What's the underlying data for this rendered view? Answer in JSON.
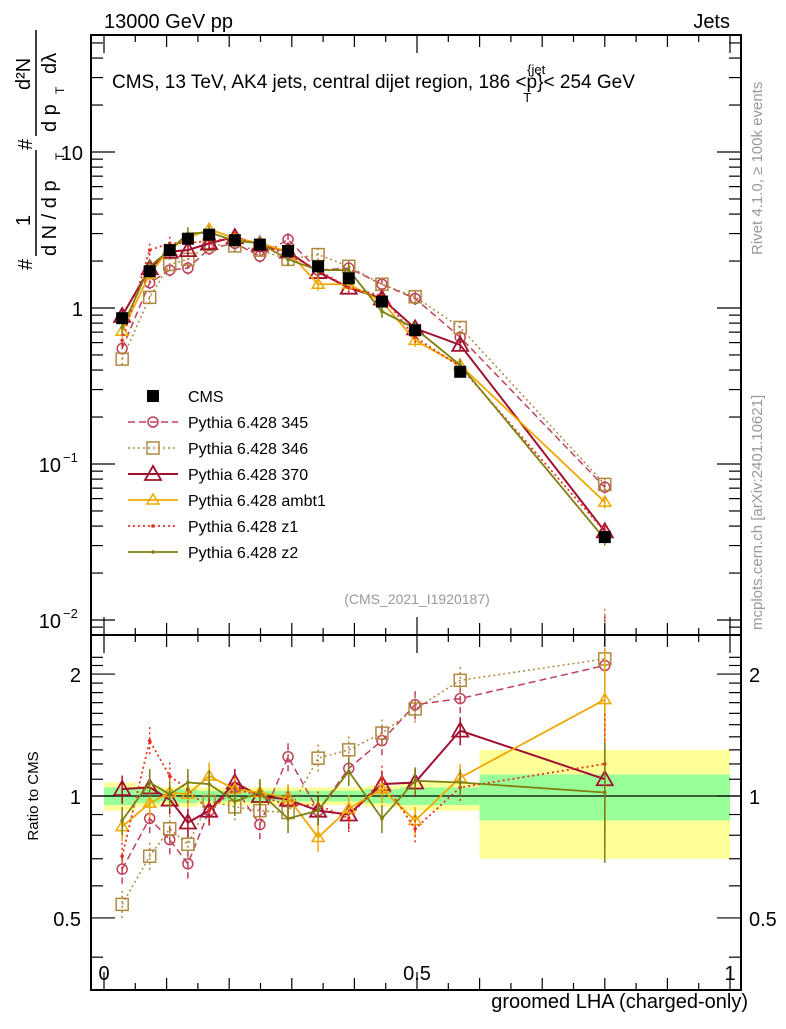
{
  "header": {
    "left": "13000 GeV pp",
    "right": "Jets"
  },
  "side_labels": {
    "rivet": "Rivet 4.1.0, ≥ 100k events",
    "mcplots": "mcplots.cern.ch [arXiv:2401.10621]"
  },
  "chart_data": [
    {
      "type": "line",
      "panel": "main",
      "title": "CMS, 13 TeV, AK4 jets, central dijet region, 186 <p_T^{jet}< 254 GeV",
      "title_parts": {
        "pre": "CMS, 13 TeV, AK4 jets, central dijet region, 186 <p",
        "sup": "{jet",
        "sub": "T",
        "post": "}< 254 GeV"
      },
      "ylabel": "1/N dN/dp_T  d²N/dp_T dλ",
      "ylabel_parts": {
        "hash1": "#",
        "one": "1",
        "den1": "d N / d p",
        "subT": "T",
        "hash2": "#",
        "num2": "d²N",
        "den2": "d p",
        "den2b": "dλ"
      },
      "yscale": "log",
      "ylim": [
        0.0085,
        40
      ],
      "xlim": [
        -0.02,
        1.02
      ],
      "yticks": [
        {
          "v": 0.01,
          "label": "10",
          "exp": "−2"
        },
        {
          "v": 0.1,
          "label": "10",
          "exp": "−1"
        },
        {
          "v": 1,
          "label": "1",
          "exp": ""
        },
        {
          "v": 10,
          "label": "10",
          "exp": ""
        }
      ],
      "watermark": "(CMS_2021_I1920187)",
      "legend_position": "center-left",
      "x": [
        0.029,
        0.073,
        0.105,
        0.134,
        0.168,
        0.209,
        0.249,
        0.294,
        0.342,
        0.391,
        0.444,
        0.497,
        0.569,
        0.8
      ],
      "series": [
        {
          "name": "CMS",
          "color": "#000000",
          "style": "data",
          "marker": "square-filled",
          "values": [
            0.86,
            1.72,
            2.35,
            2.78,
            2.95,
            2.72,
            2.55,
            2.32,
            1.85,
            1.55,
            1.1,
            0.72,
            0.39,
            0.034
          ]
        },
        {
          "name": "Pythia 6.428 345",
          "color": "#c0405a",
          "style": "dashed",
          "marker": "circle-open",
          "values": [
            0.55,
            1.45,
            1.75,
            1.8,
            2.4,
            2.6,
            2.15,
            2.75,
            1.75,
            1.8,
            1.42,
            1.15,
            0.65,
            0.071
          ]
        },
        {
          "name": "Pythia 6.428 346",
          "color": "#b08840",
          "style": "dotted",
          "marker": "square-open",
          "values": [
            0.47,
            1.17,
            1.9,
            2.05,
            2.55,
            2.5,
            2.35,
            2.05,
            2.2,
            1.85,
            1.42,
            1.18,
            0.75,
            0.074
          ]
        },
        {
          "name": "Pythia 6.428 370",
          "color": "#a01030",
          "style": "solid",
          "marker": "triangle-open",
          "values": [
            0.89,
            1.8,
            2.3,
            2.35,
            2.6,
            2.85,
            2.55,
            2.3,
            1.7,
            1.35,
            1.15,
            0.74,
            0.58,
            0.037
          ]
        },
        {
          "name": "Pythia 6.428 ambt1",
          "color": "#f0a800",
          "style": "solid",
          "marker": "triangle-small",
          "values": [
            0.71,
            1.65,
            2.4,
            2.8,
            3.2,
            2.8,
            2.6,
            2.3,
            1.42,
            1.42,
            1.1,
            0.62,
            0.43,
            0.057
          ]
        },
        {
          "name": "Pythia 6.428 z1",
          "color": "#e83020",
          "style": "dotted",
          "marker": "dot",
          "values": [
            0.62,
            2.35,
            2.6,
            2.6,
            2.7,
            2.8,
            2.55,
            2.2,
            1.75,
            1.35,
            1.2,
            0.65,
            0.42,
            0.037
          ]
        },
        {
          "name": "Pythia 6.428 z2",
          "color": "#808010",
          "style": "solid",
          "marker": "dot",
          "values": [
            0.75,
            1.85,
            2.35,
            3.0,
            3.05,
            2.7,
            2.6,
            2.05,
            1.75,
            1.75,
            0.95,
            0.74,
            0.43,
            0.033
          ]
        }
      ]
    },
    {
      "type": "line",
      "panel": "ratio",
      "ylabel": "Ratio to CMS",
      "xlabel": "groomed LHA (charged-only)",
      "yscale": "log",
      "ylim": [
        0.4,
        2.3
      ],
      "xlim": [
        -0.02,
        1.02
      ],
      "xticks": [
        {
          "v": 0,
          "label": "0"
        },
        {
          "v": 0.5,
          "label": "0.5"
        },
        {
          "v": 1,
          "label": "1"
        }
      ],
      "yticks": [
        {
          "v": 0.5,
          "label": "0.5"
        },
        {
          "v": 1,
          "label": "1"
        },
        {
          "v": 2,
          "label": "2"
        }
      ],
      "reference": 1,
      "bands": [
        {
          "x": [
            0.0,
            0.051,
            0.09,
            0.118,
            0.15,
            0.186,
            0.229,
            0.27,
            0.318,
            0.367,
            0.417,
            0.472,
            0.6
          ],
          "inner": [
            0.05,
            0.04,
            0.03,
            0.04,
            0.03,
            0.03,
            0.03,
            0.03,
            0.03,
            0.03,
            0.04,
            0.05,
            0.13
          ],
          "outer": [
            0.08,
            0.06,
            0.05,
            0.06,
            0.05,
            0.05,
            0.05,
            0.05,
            0.05,
            0.05,
            0.06,
            0.08,
            0.3
          ],
          "x_end": 1.0
        }
      ],
      "band_colors": {
        "inner": "#99ff99",
        "outer": "#ffff99"
      },
      "x": [
        0.029,
        0.073,
        0.105,
        0.134,
        0.168,
        0.209,
        0.249,
        0.294,
        0.342,
        0.391,
        0.444,
        0.497,
        0.569,
        0.8
      ],
      "series": [
        {
          "name": "Pythia 6.428 345",
          "values": [
            0.66,
            0.88,
            0.78,
            0.68,
            0.92,
            1.05,
            0.85,
            1.25,
            0.92,
            1.17,
            1.37,
            1.68,
            1.74,
            2.1
          ]
        },
        {
          "name": "Pythia 6.428 346",
          "values": [
            0.54,
            0.71,
            0.83,
            0.76,
            0.97,
            0.94,
            0.92,
            0.91,
            1.24,
            1.3,
            1.43,
            1.64,
            1.93,
            2.18
          ]
        },
        {
          "name": "Pythia 6.428 370",
          "values": [
            1.04,
            1.05,
            0.98,
            0.86,
            0.92,
            1.08,
            1.0,
            0.98,
            0.92,
            0.9,
            1.07,
            1.08,
            1.45,
            1.1
          ]
        },
        {
          "name": "Pythia 6.428 ambt1",
          "values": [
            0.84,
            0.96,
            1.02,
            1.01,
            1.12,
            1.04,
            1.02,
            0.99,
            0.79,
            0.93,
            1.04,
            0.87,
            1.11,
            1.73
          ]
        },
        {
          "name": "Pythia 6.428 z1",
          "values": [
            0.71,
            1.37,
            1.12,
            1.04,
            0.92,
            1.04,
            1.0,
            0.95,
            0.95,
            0.88,
            1.1,
            0.83,
            1.05,
            1.2
          ]
        },
        {
          "name": "Pythia 6.428 z2",
          "values": [
            0.87,
            1.08,
            1.01,
            1.08,
            1.07,
            0.97,
            1.02,
            0.88,
            0.92,
            1.15,
            0.88,
            1.09,
            1.08,
            1.02
          ]
        }
      ]
    }
  ]
}
